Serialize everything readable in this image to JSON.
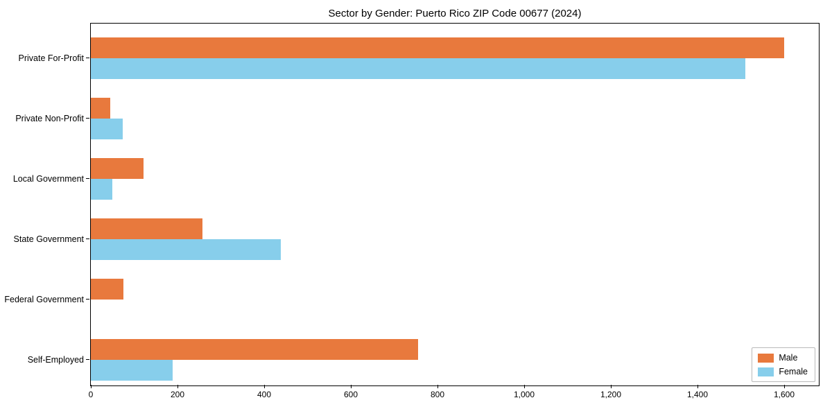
{
  "chart_data": {
    "type": "bar",
    "orientation": "horizontal",
    "title": "Sector by Gender: Puerto Rico ZIP Code 00677 (2024)",
    "categories": [
      "Private For-Profit",
      "Private Non-Profit",
      "Local Government",
      "State Government",
      "Federal Government",
      "Self-Employed"
    ],
    "series": [
      {
        "name": "Male",
        "color": "#E8793D",
        "values": [
          1600,
          45,
          122,
          258,
          75,
          755
        ]
      },
      {
        "name": "Female",
        "color": "#87CEEB",
        "values": [
          1510,
          73,
          50,
          438,
          0,
          188
        ]
      }
    ],
    "xlim": [
      0,
      1680
    ],
    "x_ticks": [
      0,
      200,
      400,
      600,
      800,
      1000,
      1200,
      1400,
      1600
    ],
    "x_tick_labels": [
      "0",
      "200",
      "400",
      "600",
      "800",
      "1,000",
      "1,200",
      "1,400",
      "1,600"
    ],
    "xlabel": "",
    "ylabel": "",
    "grid": false,
    "legend_position": "lower right"
  }
}
